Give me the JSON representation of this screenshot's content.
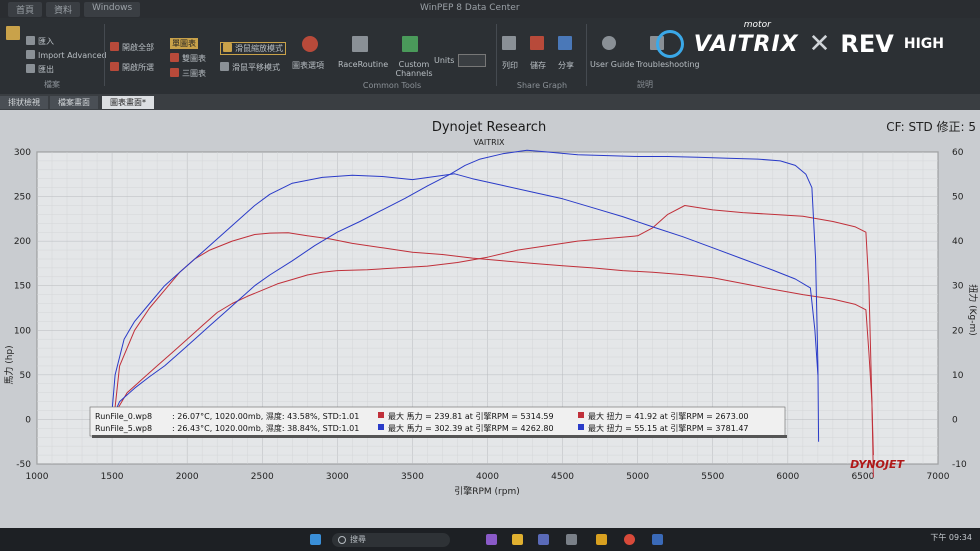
{
  "window": {
    "title": "WinPEP 8 Data Center",
    "menu_tabs": [
      "首頁",
      "資料",
      "Windows"
    ]
  },
  "ribbon": {
    "file_items": [
      "匯入",
      "Import Advanced",
      "匯出"
    ],
    "file_group_label": "檔案",
    "open_items": [
      "開啟全部",
      "開啟所選"
    ],
    "graph_items": [
      "單圖表",
      "雙圖表",
      "三圖表"
    ],
    "mode_items": [
      "滑鼠縮放模式",
      "滑鼠平移模式"
    ],
    "chart_options": "圖表選項",
    "race_routine": "RaceRoutine",
    "custom_channels": "Custom Channels",
    "units_label": "Units",
    "common_tools_label": "Common Tools",
    "share_items": [
      "列印",
      "儲存",
      "分享"
    ],
    "share_group_label": "Share Graph",
    "help_items": [
      "User Guide",
      "Troubleshooting"
    ],
    "help_group_label": "說明"
  },
  "branding": {
    "vaitrix": "VAITRIX",
    "motor": "motor",
    "x": "✕",
    "rev": "REV",
    "high": "HIGH"
  },
  "doc_tabs": [
    "排狀檢視",
    "檔案畫面",
    "圖表畫面*"
  ],
  "chart_data": {
    "type": "line",
    "title": "Dynojet Research",
    "subtitle": "VAITRIX",
    "cf_label": "CF: STD 修正: 5",
    "xlabel": "引擎RPM (rpm)",
    "ylabel_left": "馬力 (hp)",
    "ylabel_right": "扭力 (Kg-m)",
    "xlim": [
      1000,
      7000
    ],
    "ylim_left": [
      -50,
      300
    ],
    "ylim_right": [
      -10,
      60
    ],
    "x_ticks": [
      1000,
      1500,
      2000,
      2500,
      3000,
      3500,
      4000,
      4500,
      5000,
      5500,
      6000,
      6500,
      7000
    ],
    "y_ticks_left": [
      -50,
      0,
      50,
      100,
      150,
      200,
      250,
      300
    ],
    "y_ticks_right": [
      -10,
      0,
      10,
      20,
      30,
      40,
      50,
      60
    ],
    "grid": true,
    "watermark": "DYNOJET",
    "colors": {
      "run0": "#c0303a",
      "run1": "#2a3bc8"
    },
    "series": [
      {
        "run": "run0",
        "kind": "hp",
        "axis": "left",
        "color": "#c0303a",
        "x": [
          1505,
          1530,
          1600,
          1700,
          1800,
          1900,
          2000,
          2100,
          2200,
          2300,
          2400,
          2500,
          2600,
          2700,
          2800,
          2900,
          3000,
          3200,
          3400,
          3600,
          3800,
          4000,
          4200,
          4400,
          4600,
          4800,
          5000,
          5100,
          5200,
          5314,
          5500,
          5700,
          5900,
          6100,
          6300,
          6450,
          6520,
          6540,
          6560,
          6570
        ],
        "y": [
          -5,
          10,
          30,
          45,
          60,
          75,
          90,
          105,
          120,
          130,
          138,
          145,
          152,
          157,
          162,
          165,
          167,
          168,
          170,
          172,
          176,
          182,
          190,
          195,
          200,
          203,
          206,
          215,
          230,
          240,
          235,
          232,
          230,
          228,
          222,
          216,
          210,
          150,
          20,
          -65
        ]
      },
      {
        "run": "run0",
        "kind": "torque",
        "axis": "right",
        "color": "#c0303a",
        "x": [
          1505,
          1550,
          1650,
          1750,
          1850,
          1950,
          2050,
          2150,
          2300,
          2450,
          2550,
          2673,
          2800,
          2950,
          3100,
          3300,
          3500,
          3700,
          3900,
          4100,
          4300,
          4500,
          4700,
          4900,
          5100,
          5300,
          5500,
          5700,
          5900,
          6100,
          6300,
          6450,
          6520,
          6540,
          6560,
          6570
        ],
        "y": [
          -2,
          12,
          20,
          25,
          29,
          33,
          36,
          38,
          40,
          41.5,
          41.8,
          41.9,
          41.2,
          40.5,
          39.5,
          38.5,
          37.5,
          37,
          36.2,
          35.6,
          35,
          34.5,
          34,
          33.4,
          33,
          32.5,
          31.8,
          30.5,
          29.2,
          28,
          27,
          25.8,
          24.6,
          15,
          4,
          -8
        ]
      },
      {
        "run": "run1",
        "kind": "hp",
        "axis": "left",
        "color": "#2a3bc8",
        "x": [
          1490,
          1510,
          1550,
          1650,
          1750,
          1850,
          1950,
          2050,
          2150,
          2250,
          2350,
          2450,
          2550,
          2700,
          2850,
          3000,
          3150,
          3300,
          3450,
          3600,
          3750,
          3850,
          3950,
          4100,
          4263,
          4400,
          4600,
          4800,
          5000,
          5200,
          5400,
          5600,
          5800,
          5950,
          6050,
          6120,
          6160,
          6185,
          6200,
          6205
        ],
        "y": [
          -10,
          5,
          20,
          35,
          48,
          60,
          75,
          90,
          105,
          120,
          135,
          150,
          162,
          178,
          195,
          210,
          222,
          235,
          248,
          262,
          275,
          285,
          292,
          298,
          302,
          300,
          297,
          296,
          295,
          295,
          294,
          293,
          292,
          290,
          285,
          275,
          260,
          180,
          60,
          -25
        ]
      },
      {
        "run": "run1",
        "kind": "torque",
        "axis": "right",
        "color": "#2a3bc8",
        "x": [
          1490,
          1520,
          1580,
          1650,
          1750,
          1850,
          1950,
          2050,
          2150,
          2250,
          2350,
          2450,
          2550,
          2700,
          2900,
          3100,
          3300,
          3500,
          3650,
          3781,
          3900,
          4100,
          4300,
          4500,
          4700,
          4900,
          5100,
          5300,
          5500,
          5700,
          5900,
          6050,
          6150,
          6180,
          6200
        ],
        "y": [
          -2,
          10,
          18,
          22,
          26,
          30,
          33,
          36,
          39,
          42,
          45,
          48,
          50.5,
          53,
          54.3,
          54.8,
          54.5,
          53.8,
          54.5,
          55.1,
          54,
          52.5,
          51,
          49.5,
          47.5,
          45.5,
          43.2,
          41,
          38.5,
          36,
          33.5,
          31.5,
          29.5,
          20,
          10
        ]
      }
    ],
    "legend": [
      {
        "file": "RunFile_0.wp8",
        "conditions": ": 26.07°C, 1020.00mb, 濕度: 43.58%, STD:1.01",
        "color": "#c0303a",
        "max_hp": "最大 馬力 = 239.81 at 引擎RPM = 5314.59",
        "max_tq": "最大 扭力 = 41.92 at 引擎RPM = 2673.00"
      },
      {
        "file": "RunFile_5.wp8",
        "conditions": ": 26.43°C, 1020.00mb, 濕度: 38.84%, STD:1.01",
        "color": "#2a3bc8",
        "max_hp": "最大 馬力 = 302.39 at 引擎RPM = 4262.80",
        "max_tq": "最大 扭力 = 55.15 at 引擎RPM = 3781.47"
      }
    ],
    "legend_placement": "bottom-left"
  },
  "taskbar": {
    "search_label": "搜尋",
    "clock": "下午 09:34"
  }
}
